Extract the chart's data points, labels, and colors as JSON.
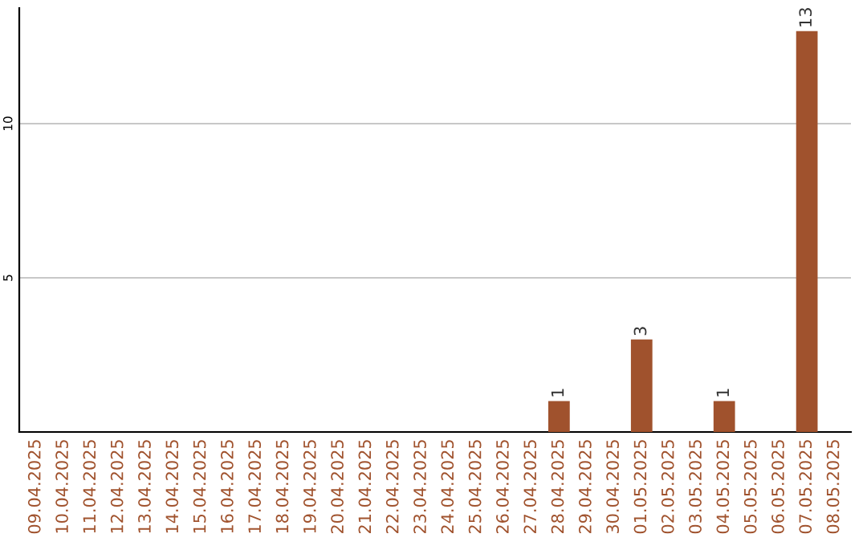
{
  "chart_data": {
    "type": "bar",
    "categories": [
      "09.04.2025",
      "10.04.2025",
      "11.04.2025",
      "12.04.2025",
      "13.04.2025",
      "14.04.2025",
      "15.04.2025",
      "16.04.2025",
      "17.04.2025",
      "18.04.2025",
      "19.04.2025",
      "20.04.2025",
      "21.04.2025",
      "22.04.2025",
      "23.04.2025",
      "24.04.2025",
      "25.04.2025",
      "26.04.2025",
      "27.04.2025",
      "28.04.2025",
      "29.04.2025",
      "30.04.2025",
      "01.05.2025",
      "02.05.2025",
      "03.05.2025",
      "04.05.2025",
      "05.05.2025",
      "06.05.2025",
      "07.05.2025",
      "08.05.2025"
    ],
    "values": [
      0,
      0,
      0,
      0,
      0,
      0,
      0,
      0,
      0,
      0,
      0,
      0,
      0,
      0,
      0,
      0,
      0,
      0,
      0,
      1,
      0,
      0,
      3,
      0,
      0,
      1,
      0,
      0,
      13,
      0
    ],
    "value_labels": [
      null,
      null,
      null,
      null,
      null,
      null,
      null,
      null,
      null,
      null,
      null,
      null,
      null,
      null,
      null,
      null,
      null,
      null,
      null,
      "1",
      null,
      null,
      "3",
      null,
      null,
      "1",
      null,
      null,
      "13",
      null
    ],
    "color": "#a0522d",
    "ylim": [
      0,
      13.75
    ],
    "yticks": [
      5,
      10
    ],
    "grid": "y",
    "legend": false
  }
}
